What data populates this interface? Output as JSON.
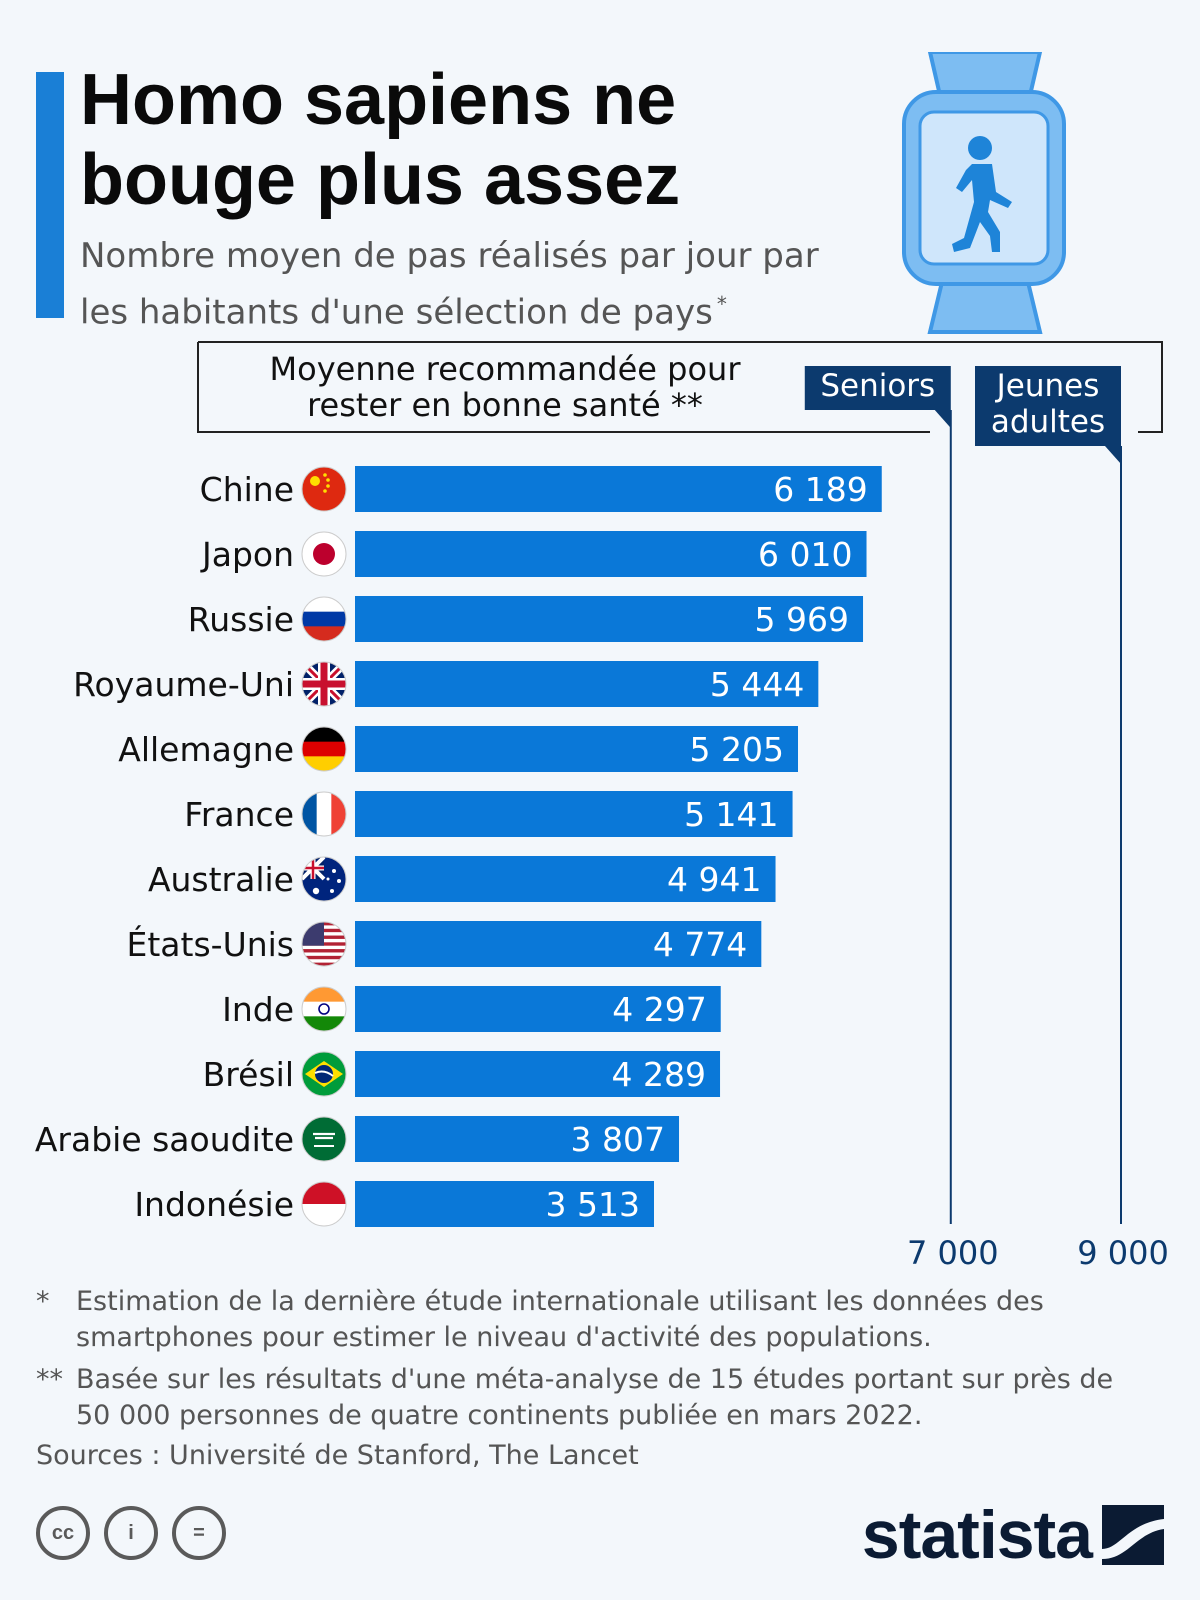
{
  "header": {
    "title": "Homo sapiens ne bouge plus assez",
    "subtitle": "Nombre moyen de pas réalisés par jour par les habitants d'une sélection de pays",
    "subtitle_mark": "*"
  },
  "chart_data": {
    "type": "bar",
    "orientation": "horizontal",
    "categories": [
      "Chine",
      "Japon",
      "Russie",
      "Royaume-Uni",
      "Allemagne",
      "France",
      "Australie",
      "États-Unis",
      "Inde",
      "Brésil",
      "Arabie saoudite",
      "Indonésie"
    ],
    "values": [
      6189,
      6010,
      5969,
      5444,
      5205,
      5141,
      4941,
      4774,
      4297,
      4289,
      3807,
      3513
    ],
    "value_labels": [
      "6 189",
      "6 010",
      "5 969",
      "5 444",
      "5 205",
      "5 141",
      "4 941",
      "4 774",
      "4 297",
      "4 289",
      "3 807",
      "3 513"
    ],
    "xlim": [
      0,
      9000
    ],
    "bar_color": "#0a78d8",
    "reference_box_label": "Moyenne recommandée pour rester en bonne santé **",
    "reference_lines": [
      {
        "label": "Seniors",
        "value": 7000,
        "tick_label": "7 000"
      },
      {
        "label": "Jeunes adultes",
        "value": 9000,
        "tick_label": "9 000"
      }
    ],
    "reference_color": "#0c3a6e"
  },
  "footnotes": [
    {
      "mark": "*",
      "text": "Estimation de la dernière étude internationale utilisant les données des smartphones pour estimer le niveau d'activité des populations."
    },
    {
      "mark": "**",
      "text": "Basée sur les résultats d'une méta-analyse de 15 études portant sur près de 50 000 personnes de quatre continents publiée en mars 2022."
    }
  ],
  "sources": "Sources : Université de Stanford, The Lancet",
  "license_icons": [
    {
      "name": "cc-icon",
      "glyph": "cc"
    },
    {
      "name": "attribution-icon",
      "glyph": "i"
    },
    {
      "name": "no-derivatives-icon",
      "glyph": "="
    }
  ],
  "brand": {
    "name": "statista",
    "color": "#0b1b33"
  },
  "icons": {
    "header": "smartwatch-walking-icon"
  },
  "colors": {
    "accent": "#1a7fd6",
    "watch": "#7dbdf2",
    "background": "#f3f7fb"
  }
}
